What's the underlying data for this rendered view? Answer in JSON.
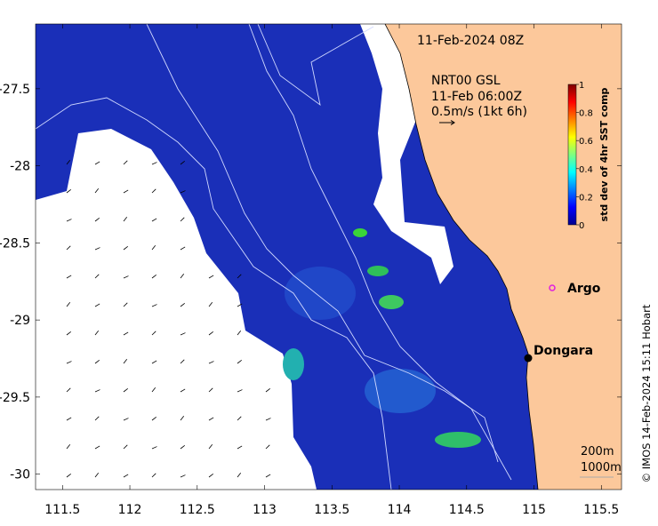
{
  "map": {
    "title": "11-Feb-2024 08Z",
    "lon_ticks": [
      "111.5",
      "112",
      "112.5",
      "113",
      "113.5",
      "114",
      "114.5",
      "115",
      "115.5"
    ],
    "lat_ticks": [
      "-27.5",
      "-28",
      "-28.5",
      "-29",
      "-29.5",
      "-30"
    ],
    "lon_range": [
      111.3,
      115.65
    ],
    "lat_range": [
      -30.1,
      -27.08
    ],
    "ocean_color": "#1a2fb8",
    "land_color": "#fcc89b",
    "no_data_color": "#ffffff",
    "places": [
      {
        "name": "Argo",
        "lon": 115.0,
        "lat": -28.84,
        "marker": "magenta-circle",
        "color": "#e020e0"
      },
      {
        "name": "Dongara",
        "lon": 114.93,
        "lat": -29.25,
        "marker": "black-dot",
        "color": "#000000"
      }
    ]
  },
  "currents": {
    "source": "NRT00 GSL",
    "time": "11-Feb 06:00Z",
    "scale_label": "0.5m/s (1kt 6h)"
  },
  "colorbar": {
    "label": "std dev of 4hr SST comp",
    "ticks": [
      "0",
      "0.2",
      "0.4",
      "0.6",
      "0.8",
      "1"
    ],
    "range": [
      0,
      1
    ],
    "colormap": "jet"
  },
  "contours": {
    "labels": [
      "200m",
      "1000m"
    ]
  },
  "credit": "© IMOS 14-Feb-2024 15:11 Hobart"
}
